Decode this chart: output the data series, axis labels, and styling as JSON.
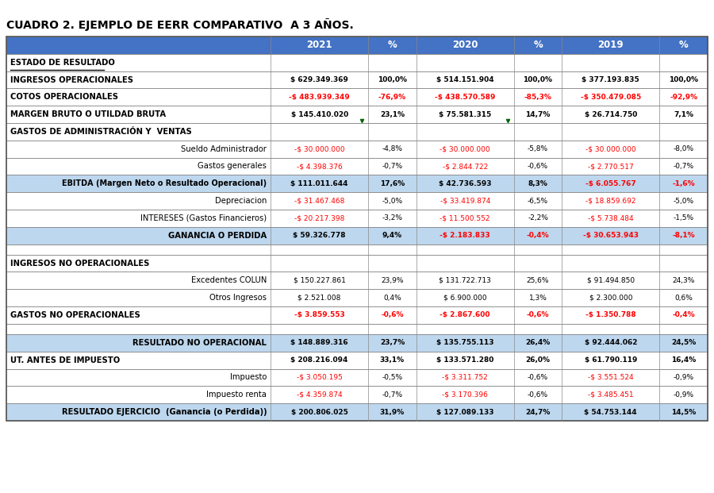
{
  "title": "CUADRO 2. EJEMPLO DE EERR COMPARATIVO  A 3 AÑOS.",
  "header_bg": "#4472C4",
  "header_text": "#FFFFFF",
  "ebitda_bg": "#BDD7EE",
  "ganancia_bg": "#BDD7EE",
  "resultado_no_op_bg": "#BDD7EE",
  "resultado_ejercicio_bg": "#BDD7EE",
  "red": "#FF0000",
  "black": "#000000",
  "columns": [
    "",
    "2021",
    "%",
    "2020",
    "%",
    "2019",
    "%"
  ],
  "rows": [
    {
      "label": "ESTADO DE RESULTADO",
      "values": [
        "",
        "",
        "",
        "",
        "",
        ""
      ],
      "style": "section_header",
      "underline": true
    },
    {
      "label": "INGRESOS OPERACIONALES",
      "values": [
        "$ 629.349.369",
        "100,0%",
        "$ 514.151.904",
        "100,0%",
        "$ 377.193.835",
        "100,0%"
      ],
      "colors": [
        "black",
        "black",
        "black",
        "black",
        "black",
        "black"
      ],
      "style": "bold_row"
    },
    {
      "label": "COTOS OPERACIONALES",
      "values": [
        "-$ 483.939.349",
        "-76,9%",
        "-$ 438.570.589",
        "-85,3%",
        "-$ 350.479.085",
        "-92,9%"
      ],
      "colors": [
        "red",
        "red",
        "red",
        "red",
        "red",
        "red"
      ],
      "style": "bold_row"
    },
    {
      "label": "MARGEN BRUTO O UTILDAD BRUTA",
      "values": [
        "$ 145.410.020",
        "23,1%",
        "$ 75.581.315",
        "14,7%",
        "$ 26.714.750",
        "7,1%"
      ],
      "colors": [
        "black",
        "black",
        "black",
        "black",
        "black",
        "black"
      ],
      "style": "bold_row"
    },
    {
      "label": "GASTOS DE ADMINISTRACIÓN Y  VENTAS",
      "values": [
        "",
        "",
        "",
        "",
        "",
        ""
      ],
      "style": "section_header_plain",
      "underline": false
    },
    {
      "label": "Sueldo Administrador",
      "values": [
        "-$ 30.000.000",
        "-4,8%",
        "-$ 30.000.000",
        "-5,8%",
        "-$ 30.000.000",
        "-8,0%"
      ],
      "colors": [
        "red",
        "black",
        "red",
        "black",
        "red",
        "black"
      ],
      "style": "indent_row",
      "align": "right"
    },
    {
      "label": "Gastos generales",
      "values": [
        "-$ 4.398.376",
        "-0,7%",
        "-$ 2.844.722",
        "-0,6%",
        "-$ 2.770.517",
        "-0,7%"
      ],
      "colors": [
        "red",
        "black",
        "red",
        "black",
        "red",
        "black"
      ],
      "style": "indent_row",
      "align": "right"
    },
    {
      "label": "EBITDA (Margen Neto o Resultado Operacional)",
      "values": [
        "$ 111.011.644",
        "17,6%",
        "$ 42.736.593",
        "8,3%",
        "-$ 6.055.767",
        "-1,6%"
      ],
      "colors": [
        "black",
        "black",
        "black",
        "black",
        "red",
        "red"
      ],
      "style": "ebitda_row",
      "bg": "#BDD7EE"
    },
    {
      "label": "Depreciacion",
      "values": [
        "-$ 31.467.468",
        "-5,0%",
        "-$ 33.419.874",
        "-6,5%",
        "-$ 18.859.692",
        "-5,0%"
      ],
      "colors": [
        "red",
        "black",
        "red",
        "black",
        "red",
        "black"
      ],
      "style": "indent_row",
      "align": "right"
    },
    {
      "label": "INTERESES (Gastos Financieros)",
      "values": [
        "-$ 20.217.398",
        "-3,2%",
        "-$ 11.500.552",
        "-2,2%",
        "-$ 5.738.484",
        "-1,5%"
      ],
      "colors": [
        "red",
        "black",
        "red",
        "black",
        "red",
        "black"
      ],
      "style": "indent_row",
      "align": "right"
    },
    {
      "label": "GANANCIA O PERDIDA",
      "values": [
        "$ 59.326.778",
        "9,4%",
        "-$ 2.183.833",
        "-0,4%",
        "-$ 30.653.943",
        "-8,1%"
      ],
      "colors": [
        "black",
        "black",
        "red",
        "red",
        "red",
        "red"
      ],
      "style": "ganancia_row",
      "bg": "#BDD7EE"
    },
    {
      "label": "",
      "values": [
        "",
        "",
        "",
        "",
        "",
        ""
      ],
      "style": "empty_row"
    },
    {
      "label": "INGRESOS NO OPERACIONALES",
      "values": [
        "",
        "",
        "",
        "",
        "",
        ""
      ],
      "style": "section_header_plain",
      "underline": false
    },
    {
      "label": "Excedentes COLUN",
      "values": [
        "$ 150.227.861",
        "23,9%",
        "$ 131.722.713",
        "25,6%",
        "$ 91.494.850",
        "24,3%"
      ],
      "colors": [
        "black",
        "black",
        "black",
        "black",
        "black",
        "black"
      ],
      "style": "indent_row",
      "align": "right"
    },
    {
      "label": "Otros Ingresos",
      "values": [
        "$ 2.521.008",
        "0,4%",
        "$ 6.900.000",
        "1,3%",
        "$ 2.300.000",
        "0,6%"
      ],
      "colors": [
        "black",
        "black",
        "black",
        "black",
        "black",
        "black"
      ],
      "style": "indent_row",
      "align": "right"
    },
    {
      "label": "GASTOS NO OPERACIONALES",
      "values": [
        "-$ 3.859.553",
        "-0,6%",
        "-$ 2.867.600",
        "-0,6%",
        "-$ 1.350.788",
        "-0,4%"
      ],
      "colors": [
        "red",
        "red",
        "red",
        "red",
        "red",
        "red"
      ],
      "style": "bold_row"
    },
    {
      "label": "",
      "values": [
        "",
        "",
        "",
        "",
        "",
        ""
      ],
      "style": "empty_row"
    },
    {
      "label": "RESULTADO NO OPERACIONAL",
      "values": [
        "$ 148.889.316",
        "23,7%",
        "$ 135.755.113",
        "26,4%",
        "$ 92.444.062",
        "24,5%"
      ],
      "colors": [
        "black",
        "black",
        "black",
        "black",
        "black",
        "black"
      ],
      "style": "resultado_row",
      "bg": "#BDD7EE"
    },
    {
      "label": "UT. ANTES DE IMPUESTO",
      "values": [
        "$ 208.216.094",
        "33,1%",
        "$ 133.571.280",
        "26,0%",
        "$ 61.790.119",
        "16,4%"
      ],
      "colors": [
        "black",
        "black",
        "black",
        "black",
        "black",
        "black"
      ],
      "style": "bold_row"
    },
    {
      "label": "Impuesto",
      "values": [
        "-$ 3.050.195",
        "-0,5%",
        "-$ 3.311.752",
        "-0,6%",
        "-$ 3.551.524",
        "-0,9%"
      ],
      "colors": [
        "red",
        "black",
        "red",
        "black",
        "red",
        "black"
      ],
      "style": "indent_row",
      "align": "right"
    },
    {
      "label": "Impuesto renta",
      "values": [
        "-$ 4.359.874",
        "-0,7%",
        "-$ 3.170.396",
        "-0,6%",
        "-$ 3.485.451",
        "-0,9%"
      ],
      "colors": [
        "red",
        "black",
        "red",
        "black",
        "red",
        "black"
      ],
      "style": "indent_row",
      "align": "right"
    },
    {
      "label": "RESULTADO EJERCICIO  (Ganancia (o Perdida))",
      "values": [
        "$ 200.806.025",
        "31,9%",
        "$ 127.089.133",
        "24,7%",
        "$ 54.753.144",
        "14,5%"
      ],
      "colors": [
        "black",
        "black",
        "black",
        "black",
        "black",
        "black"
      ],
      "style": "resultado_ejercicio_row",
      "bg": "#BDD7EE"
    }
  ]
}
